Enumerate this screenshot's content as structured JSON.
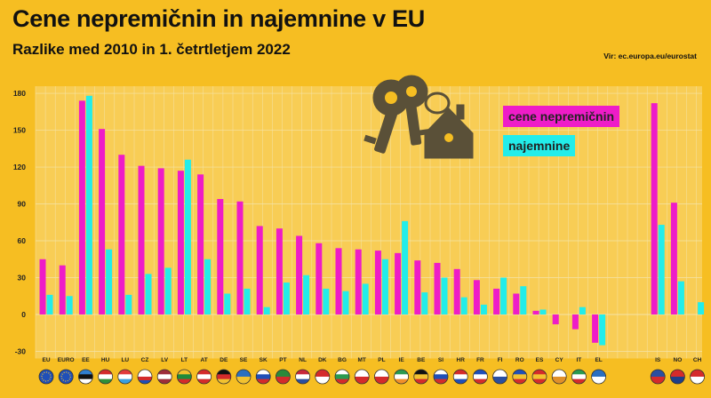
{
  "header": {
    "title": "Cene nepremičnin in najemnine v EU",
    "subtitle": "Razlike med 2010 in 1. četrtletjem 2022",
    "source": "Vir: ec.europa.eu/eurostat"
  },
  "colors": {
    "background": "#F6BE22",
    "plot_band": "#F8CD55",
    "gridline": "#F5E3A8",
    "prices": "#EE1CC8",
    "rents": "#22EDEA",
    "keys_icon": "#5A5038"
  },
  "decoration": {
    "icon": "keys-with-house-keychain-icon"
  },
  "chart_data": {
    "type": "bar",
    "title": "Cene nepremičnin in najemnine v EU",
    "subtitle": "Razlike med 2010 in 1. četrtletjem 2022",
    "xlabel": "",
    "ylabel": "",
    "ylim": [
      -30,
      180
    ],
    "yticks": [
      -30,
      0,
      30,
      60,
      90,
      120,
      150,
      180
    ],
    "grid": true,
    "legend_position": "top-right",
    "categories": [
      "EU",
      "EURO",
      "EE",
      "HU",
      "LU",
      "CZ",
      "LV",
      "LT",
      "AT",
      "DE",
      "SE",
      "SK",
      "PT",
      "NL",
      "DK",
      "BG",
      "MT",
      "PL",
      "IE",
      "BE",
      "SI",
      "HR",
      "FR",
      "FI",
      "RO",
      "ES",
      "CY",
      "IT",
      "EL",
      "IS",
      "NO",
      "CH"
    ],
    "series": [
      {
        "name": "cene nepremičnin",
        "color": "#EE1CC8",
        "values": [
          45,
          40,
          174,
          151,
          130,
          121,
          119,
          117,
          114,
          94,
          92,
          72,
          70,
          64,
          58,
          54,
          53,
          52,
          50,
          44,
          42,
          37,
          28,
          21,
          17,
          3,
          -8,
          -12,
          -23,
          172,
          91,
          null
        ]
      },
      {
        "name": "najemnine",
        "color": "#22EDEA",
        "values": [
          16,
          15,
          178,
          53,
          16,
          33,
          38,
          126,
          45,
          17,
          21,
          6,
          26,
          32,
          21,
          19,
          25,
          45,
          76,
          18,
          30,
          14,
          8,
          30,
          23,
          4,
          null,
          6,
          -25,
          73,
          27,
          10
        ]
      }
    ],
    "flags": {
      "EU": [
        "#1F4FB8"
      ],
      "EURO": [
        "#1F4FB8"
      ],
      "EE": [
        "#2f7fd0",
        "#111111",
        "#ffffff"
      ],
      "HU": [
        "#d42b2b",
        "#ffffff",
        "#2f8f3a"
      ],
      "LU": [
        "#e23a3a",
        "#ffffff",
        "#3aa0e0"
      ],
      "CZ": [
        "#ffffff",
        "#ffffff",
        "#d42b2b",
        "#1f4fb8"
      ],
      "LV": [
        "#9e2d3a",
        "#ffffff",
        "#9e2d3a"
      ],
      "LT": [
        "#f2c230",
        "#1f8a3a",
        "#d42b2b"
      ],
      "AT": [
        "#d42b2b",
        "#ffffff",
        "#d42b2b"
      ],
      "DE": [
        "#111111",
        "#d42b2b",
        "#f2c230"
      ],
      "SE": [
        "#2a6fc0",
        "#f2c230"
      ],
      "SK": [
        "#ffffff",
        "#1f4fb8",
        "#d42b2b"
      ],
      "PT": [
        "#2a8a3a",
        "#d42b2b"
      ],
      "NL": [
        "#c9283a",
        "#ffffff",
        "#2a4fa0"
      ],
      "DK": [
        "#d42b2b",
        "#ffffff"
      ],
      "BG": [
        "#ffffff",
        "#2a9a50",
        "#d42b2b"
      ],
      "MT": [
        "#ffffff",
        "#d42b2b"
      ],
      "PL": [
        "#ffffff",
        "#d42b2b"
      ],
      "IE": [
        "#2a9a50",
        "#ffffff",
        "#f0902a"
      ],
      "BE": [
        "#111111",
        "#f2c230",
        "#d42b2b"
      ],
      "SI": [
        "#ffffff",
        "#1f4fb8",
        "#d42b2b"
      ],
      "HR": [
        "#d42b2b",
        "#ffffff",
        "#1f4fb8"
      ],
      "FR": [
        "#1f4fb8",
        "#ffffff",
        "#d42b2b"
      ],
      "FI": [
        "#ffffff",
        "#2a4fa0"
      ],
      "RO": [
        "#1f4fb8",
        "#f2c230",
        "#d42b2b"
      ],
      "ES": [
        "#d42b2b",
        "#f2c230",
        "#d42b2b"
      ],
      "CY": [
        "#ffffff",
        "#e0902a"
      ],
      "IT": [
        "#2a9a50",
        "#ffffff",
        "#d42b2b"
      ],
      "EL": [
        "#2a6fc0",
        "#ffffff"
      ],
      "IS": [
        "#2a4fa0",
        "#d42b2b"
      ],
      "NO": [
        "#d42b2b",
        "#1f3f8a"
      ],
      "CH": [
        "#d42b2b",
        "#ffffff"
      ]
    }
  }
}
